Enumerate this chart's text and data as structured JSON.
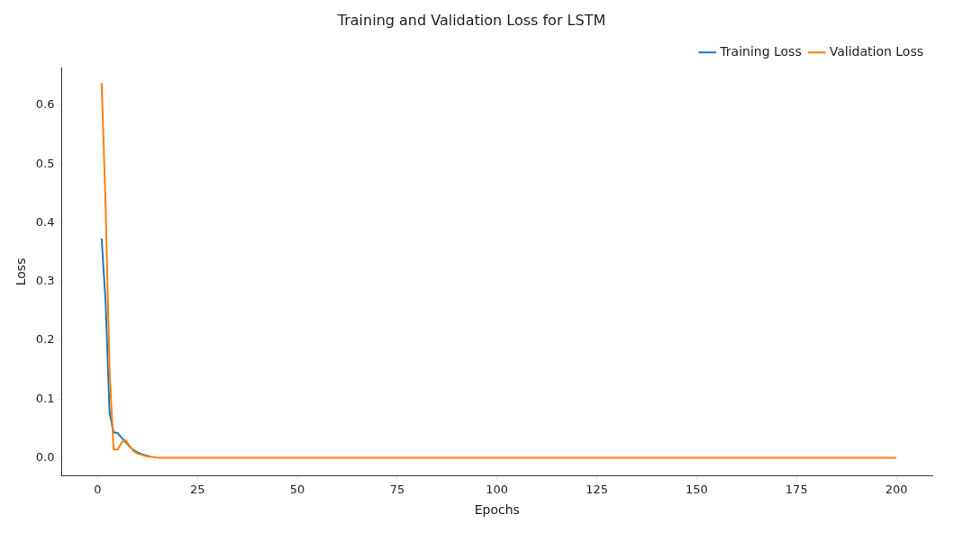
{
  "chart_data": {
    "type": "line",
    "title": "Training and Validation Loss for LSTM",
    "xlabel": "Epochs",
    "ylabel": "Loss",
    "x": [
      1,
      2,
      3,
      4,
      5,
      6,
      7,
      8,
      9,
      10,
      11,
      12,
      13,
      14,
      15,
      16,
      20,
      50,
      100,
      150,
      200
    ],
    "series": [
      {
        "name": "Training Loss",
        "color": "#1f77b4",
        "values": [
          0.373,
          0.265,
          0.076,
          0.043,
          0.042,
          0.034,
          0.027,
          0.019,
          0.013,
          0.009,
          0.006,
          0.004,
          0.002,
          null,
          null,
          null,
          null,
          null,
          null,
          null,
          null
        ]
      },
      {
        "name": "Validation Loss",
        "color": "#ff7f0e",
        "values": [
          0.638,
          0.43,
          0.146,
          0.014,
          0.014,
          0.026,
          0.03,
          0.02,
          0.011,
          0.007,
          0.005,
          0.003,
          0.002,
          0.001,
          0,
          0,
          0,
          0,
          0,
          0,
          0
        ]
      }
    ],
    "xlim": [
      -9,
      209
    ],
    "xticks": [
      0,
      25,
      50,
      75,
      100,
      125,
      150,
      175,
      200
    ],
    "ylim": [
      -0.031,
      0.664
    ],
    "yticks": [
      {
        "value": 0,
        "label": "0.0"
      },
      {
        "value": 0.1,
        "label": "0.1"
      },
      {
        "value": 0.2,
        "label": "0.2"
      },
      {
        "value": 0.3,
        "label": "0.3"
      },
      {
        "value": 0.4,
        "label": "0.4"
      },
      {
        "value": 0.5,
        "label": "0.5"
      },
      {
        "value": 0.6,
        "label": "0.6"
      }
    ],
    "grid": false,
    "legend": "top right",
    "marker": "none",
    "line_style": "solid"
  }
}
